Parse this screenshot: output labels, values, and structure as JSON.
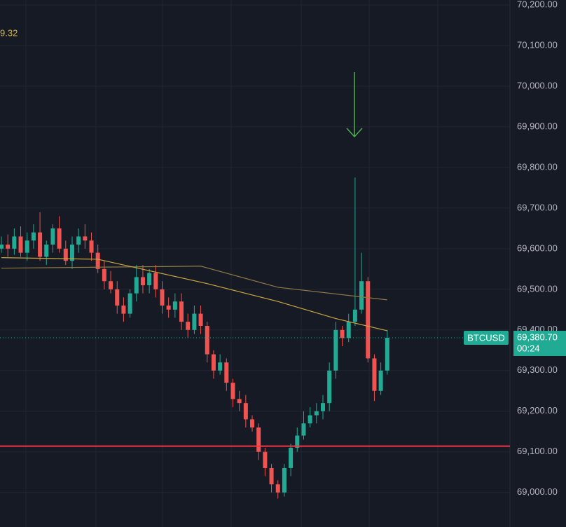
{
  "chart_data": {
    "type": "candlestick",
    "legend_fragment": "9.32",
    "symbol": "BTCUSD",
    "countdown": "00:24",
    "last_price": {
      "value": 69380.7,
      "label": "69,380.70"
    },
    "up_color": "#22ab94",
    "down_color": "#f05350",
    "ylim": [
      68915,
      70212
    ],
    "yticks": [
      {
        "value": 70200,
        "label": "70,200.00"
      },
      {
        "value": 70100,
        "label": "70,100.00"
      },
      {
        "value": 70000,
        "label": "70,000.00"
      },
      {
        "value": 69900,
        "label": "69,900.00"
      },
      {
        "value": 69800,
        "label": "69,800.00"
      },
      {
        "value": 69700,
        "label": "69,700.00"
      },
      {
        "value": 69600,
        "label": "69,600.00"
      },
      {
        "value": 69500,
        "label": "69,500.00"
      },
      {
        "value": 69400,
        "label": "69,400.00"
      },
      {
        "value": 69300,
        "label": "69,300.00"
      },
      {
        "value": 69200,
        "label": "69,200.00"
      },
      {
        "value": 69100,
        "label": "69,100.00"
      },
      {
        "value": 69000,
        "label": "69,000.00"
      }
    ],
    "open": [
      69600,
      69610,
      69600,
      69630,
      69590,
      69620,
      69640,
      69580,
      69610,
      69650,
      69600,
      69570,
      69610,
      69630,
      69620,
      69590,
      69550,
      69520,
      69500,
      69460,
      69440,
      69490,
      69530,
      69510,
      69540,
      69500,
      69460,
      69450,
      69470,
      69420,
      69400,
      69440,
      69410,
      69340,
      69300,
      69320,
      69270,
      69230,
      69220,
      69180,
      69160,
      69100,
      69060,
      69020,
      69000,
      69060,
      69110,
      69140,
      69170,
      69190,
      69200,
      69220,
      69300,
      69400,
      69380,
      69420,
      69450,
      69520,
      69330,
      69250,
      69300
    ],
    "high": [
      69630,
      69635,
      69650,
      69655,
      69640,
      69660,
      69690,
      69620,
      69660,
      69680,
      69620,
      69630,
      69650,
      69660,
      69640,
      69610,
      69570,
      69545,
      69520,
      69480,
      69500,
      69560,
      69560,
      69550,
      69560,
      69520,
      69480,
      69490,
      69490,
      69440,
      69460,
      69460,
      69420,
      69350,
      69340,
      69330,
      69280,
      69250,
      69240,
      69190,
      69170,
      69110,
      69070,
      69030,
      69070,
      69120,
      69160,
      69200,
      69210,
      69220,
      69240,
      69320,
      69420,
      69410,
      69440,
      69775,
      69590,
      69530,
      69340,
      69320,
      69400
    ],
    "low": [
      69590,
      69580,
      69585,
      69580,
      69570,
      69600,
      69570,
      69560,
      69590,
      69590,
      69560,
      69550,
      69590,
      69600,
      69570,
      69540,
      69500,
      69490,
      69440,
      69420,
      69430,
      69470,
      69490,
      69490,
      69480,
      69440,
      69430,
      69430,
      69400,
      69380,
      69390,
      69390,
      69320,
      69280,
      69290,
      69250,
      69210,
      69200,
      69160,
      69150,
      69080,
      69040,
      69000,
      68985,
      68990,
      69040,
      69100,
      69130,
      69160,
      69170,
      69180,
      69200,
      69280,
      69360,
      69370,
      69410,
      69440,
      69320,
      69225,
      69240,
      69290
    ],
    "close": [
      69610,
      69600,
      69630,
      69590,
      69620,
      69640,
      69580,
      69610,
      69650,
      69600,
      69570,
      69610,
      69630,
      69620,
      69590,
      69550,
      69520,
      69500,
      69460,
      69440,
      69490,
      69530,
      69510,
      69540,
      69500,
      69460,
      69450,
      69470,
      69420,
      69400,
      69440,
      69410,
      69340,
      69300,
      69320,
      69270,
      69230,
      69220,
      69180,
      69160,
      69100,
      69060,
      69020,
      69000,
      69060,
      69110,
      69140,
      69170,
      69190,
      69200,
      69220,
      69300,
      69400,
      69380,
      69420,
      69450,
      69520,
      69330,
      69250,
      69300,
      69380.7
    ],
    "series": [
      {
        "color": "#8f7a46",
        "x": [
          0,
          31,
          43,
          60
        ],
        "values": [
          69552,
          69557,
          69505,
          69474
        ]
      },
      {
        "color": "#c9a640",
        "x": [
          0,
          15,
          32,
          43,
          52,
          60
        ],
        "values": [
          69578,
          69574,
          69514,
          69470,
          69428,
          69398
        ]
      }
    ],
    "hline": {
      "value": 69114,
      "color": "#f23645"
    }
  }
}
